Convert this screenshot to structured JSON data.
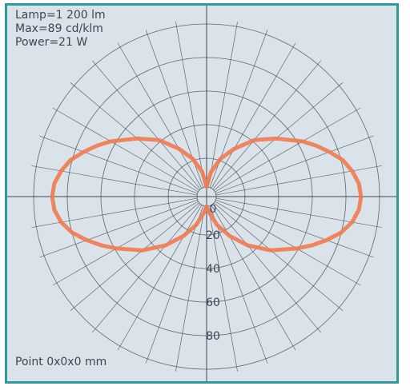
{
  "info": {
    "lamp": "Lamp=1 200 lm",
    "max": "Max=89 cd/klm",
    "power": "Power=21 W",
    "point": "Point 0x0x0 mm"
  },
  "colors": {
    "background": "#dbe3ea",
    "frame": "#2f9a9b",
    "grid": "#3f4750",
    "curve": "#ef7a50",
    "text": "#3a4654"
  },
  "chart_data": {
    "type": "polar",
    "radial_tick_labels": [
      "0",
      "20",
      "40",
      "60",
      "80"
    ],
    "radial_ticks": [
      0,
      20,
      40,
      60,
      80
    ],
    "r_max": 100,
    "angular_step_deg": 10,
    "grid": true,
    "unit": "cd/klm",
    "series": [
      {
        "angles_deg": [
          0,
          10,
          20,
          30,
          40,
          50,
          60,
          65,
          70,
          75,
          80,
          85,
          90,
          95,
          100,
          105,
          110,
          115,
          120,
          130,
          140,
          150,
          160,
          170,
          180
        ],
        "values": [
          3,
          7,
          15,
          24,
          35,
          47,
          59,
          66,
          73,
          80,
          85,
          88,
          89,
          88,
          85,
          81,
          75,
          69,
          63,
          51,
          41,
          30,
          21,
          12,
          3
        ]
      }
    ]
  }
}
